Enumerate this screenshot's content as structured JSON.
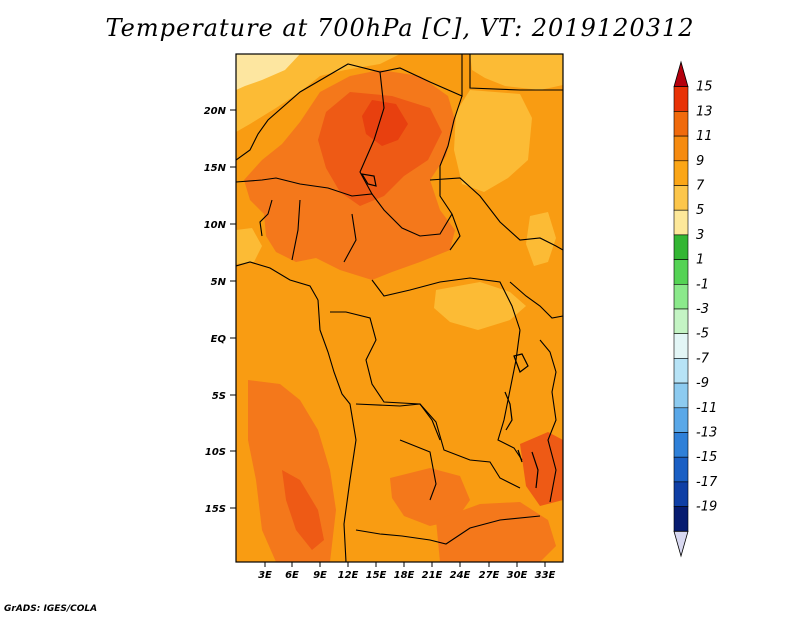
{
  "title": "Temperature at 700hPa [C], VT: 2019120312",
  "credit": "GrADS: IGES/COLA",
  "axes": {
    "lat_labels": [
      "20N",
      "15N",
      "10N",
      "5N",
      "EQ",
      "5S",
      "10S",
      "15S"
    ],
    "lon_labels": [
      "3E",
      "6E",
      "9E",
      "12E",
      "15E",
      "18E",
      "21E",
      "24E",
      "27E",
      "30E",
      "33E"
    ]
  },
  "colorbar": {
    "levels": [
      "15",
      "13",
      "11",
      "9",
      "7",
      "5",
      "3",
      "1",
      "-1",
      "-3",
      "-5",
      "-7",
      "-9",
      "-11",
      "-13",
      "-15",
      "-17",
      "-19"
    ],
    "colors": [
      "#b4000d",
      "#e83206",
      "#f06a0c",
      "#f68b10",
      "#fba617",
      "#fcc64b",
      "#fde89a",
      "#33b633",
      "#55d355",
      "#8be98b",
      "#c4f4c4",
      "#e3f6f6",
      "#b7e3f6",
      "#8dcbf0",
      "#5aa8e8",
      "#2f80d8",
      "#1a5fc4",
      "#0f3fa5",
      "#071c70",
      "#d8d8f0"
    ]
  }
}
